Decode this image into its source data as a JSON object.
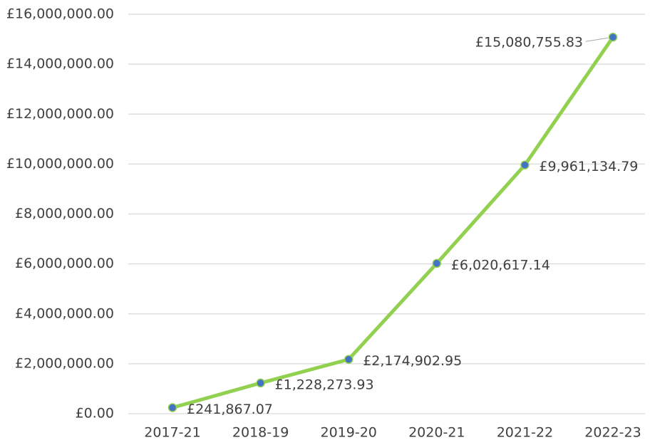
{
  "chart_data": {
    "type": "line",
    "categories": [
      "2017-21",
      "2018-19",
      "2019-20",
      "2020-21",
      "2021-22",
      "2022-23"
    ],
    "values": [
      241867.07,
      1228273.93,
      2174902.95,
      6020617.14,
      9961134.79,
      15080755.83
    ],
    "value_labels": [
      "£241,867.07",
      "£1,228,273.93",
      "£2,174,902.95",
      "£6,020,617.14",
      "£9,961,134.79",
      "£15,080,755.83"
    ],
    "color": "#92d050",
    "marker_color": "#4472c4",
    "ylim": [
      0,
      16000000
    ],
    "yticks": [
      {
        "value": 0,
        "label": "£0.00"
      },
      {
        "value": 2000000,
        "label": "£2,000,000.00"
      },
      {
        "value": 4000000,
        "label": "£4,000,000.00"
      },
      {
        "value": 6000000,
        "label": "£6,000,000.00"
      },
      {
        "value": 8000000,
        "label": "£8,000,000.00"
      },
      {
        "value": 10000000,
        "label": "£10,000,000.00"
      },
      {
        "value": 12000000,
        "label": "£12,000,000.00"
      },
      {
        "value": 14000000,
        "label": "£14,000,000.00"
      },
      {
        "value": 16000000,
        "label": "£16,000,000.00"
      }
    ],
    "grid": true
  }
}
